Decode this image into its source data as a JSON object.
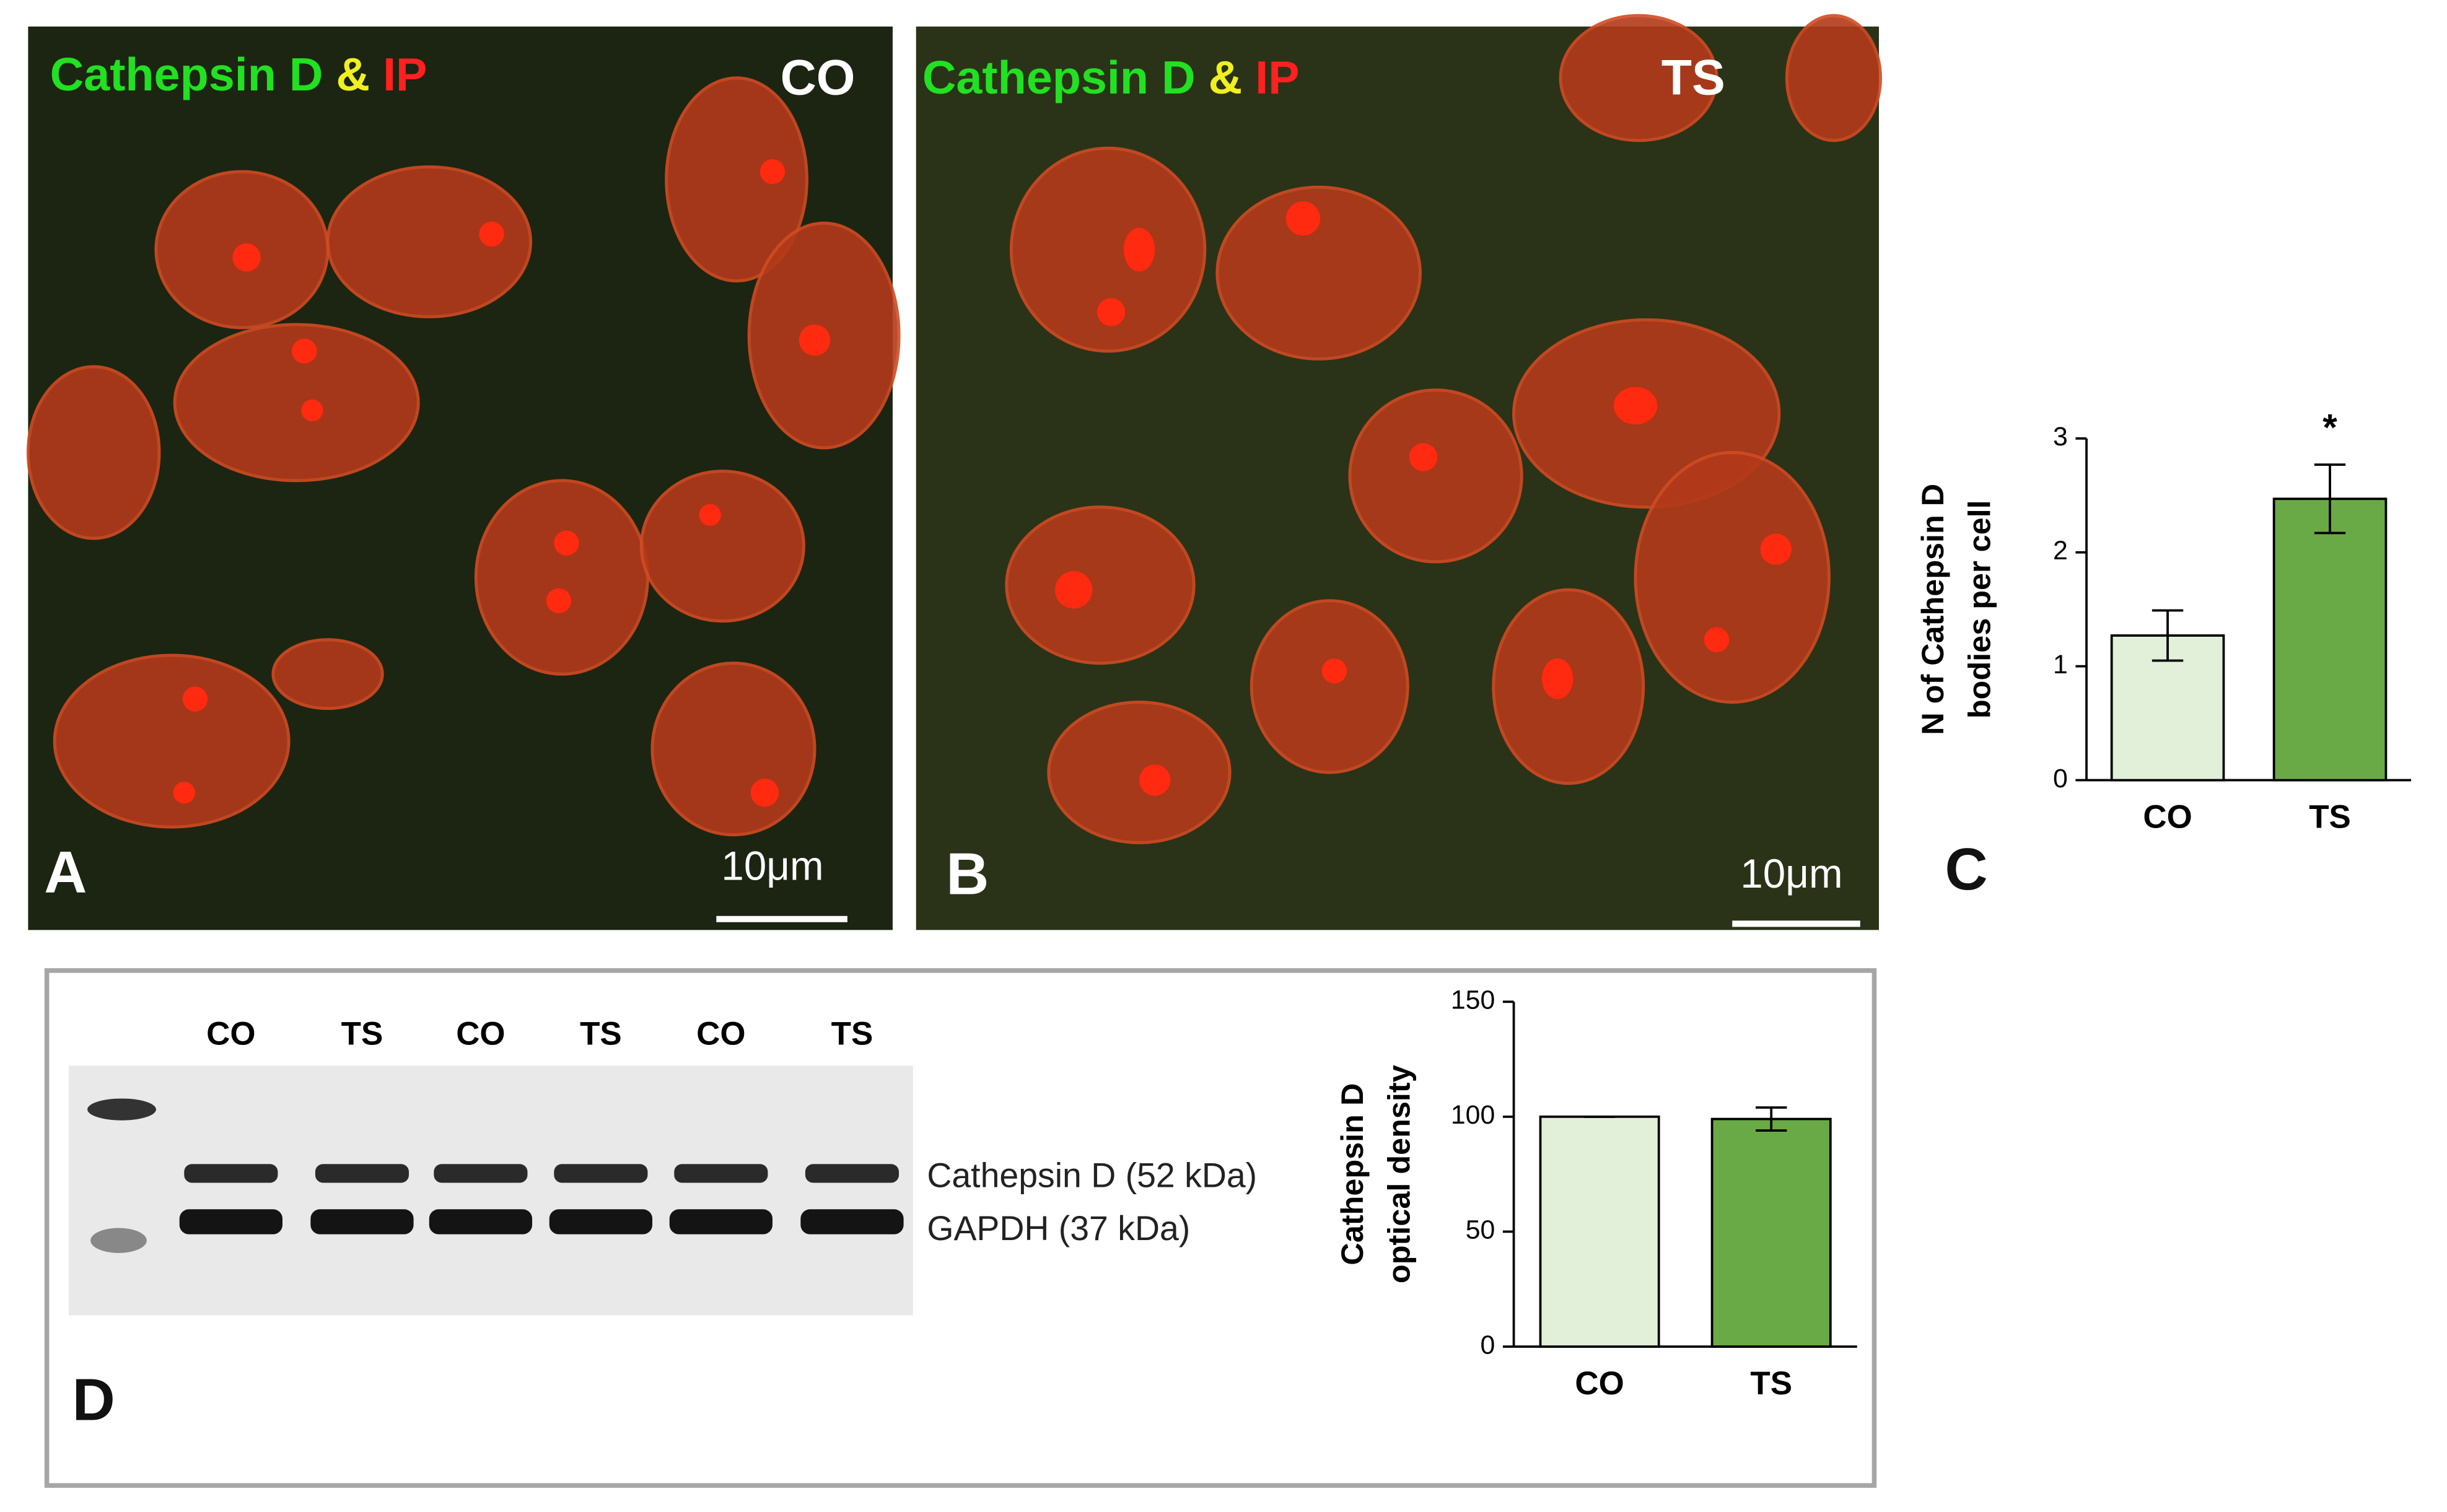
{
  "panels": [
    {
      "label": "A",
      "stain": [
        "Cathepsin D",
        "&",
        "IP"
      ],
      "condition": "CO",
      "scale_bar": "10μm"
    },
    {
      "label": "B",
      "stain": [
        "Cathepsin D",
        "&",
        "IP"
      ],
      "condition": "TS",
      "scale_bar": "10μm"
    }
  ],
  "blot": {
    "label": "D",
    "lanes": [
      "CO",
      "TS",
      "CO",
      "TS",
      "CO",
      "TS"
    ],
    "bands": [
      "Cathepsin D (52 kDa)",
      "GAPDH (37 kDa)"
    ]
  },
  "chart_data": [
    {
      "type": "bar",
      "panel_label": "C",
      "ylabel": [
        "N of Cathepsin D",
        "bodies per cell"
      ],
      "categories": [
        "CO",
        "TS"
      ],
      "values": [
        1.27,
        2.47
      ],
      "errors": [
        0.22,
        0.3
      ],
      "colors": [
        "#e2efd9",
        "#6aaa46"
      ],
      "significance": [
        null,
        "*"
      ],
      "ylim": [
        0,
        3
      ],
      "yticks": [
        0,
        1,
        2,
        3
      ]
    },
    {
      "type": "bar",
      "ylabel": [
        "Cathepsin D",
        "optical density"
      ],
      "categories": [
        "CO",
        "TS"
      ],
      "values": [
        100,
        99
      ],
      "errors": [
        0,
        5
      ],
      "colors": [
        "#e2efd9",
        "#6aaa46"
      ],
      "ylim": [
        0,
        150
      ],
      "yticks": [
        0,
        50,
        100,
        150
      ]
    }
  ]
}
